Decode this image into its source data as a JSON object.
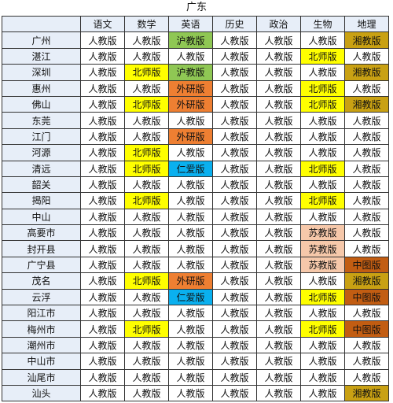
{
  "title": "广东",
  "headers": [
    "",
    "语文",
    "数学",
    "英语",
    "历史",
    "政治",
    "生物",
    "地理"
  ],
  "colors": {
    "人教版": "#ffffff",
    "北师版": "#ffff00",
    "沪教版": "#8fc754",
    "外研版": "#ee7f32",
    "仁爱版": "#0ab0ef",
    "苏教版": "#f6c8aa",
    "湘教版": "#c9a113",
    "中图版": "#c25d12"
  },
  "rows": [
    {
      "city": "广州",
      "cells": [
        "人教版",
        "人教版",
        "沪教版",
        "人教版",
        "人教版",
        "人教版",
        "湘教版"
      ]
    },
    {
      "city": "湛江",
      "cells": [
        "人教版",
        "人教版",
        "人教版",
        "人教版",
        "人教版",
        "北师版",
        "人教版"
      ]
    },
    {
      "city": "深圳",
      "cells": [
        "人教版",
        "北师版",
        "沪教版",
        "人教版",
        "人教版",
        "人教版",
        "湘教版"
      ]
    },
    {
      "city": "惠州",
      "cells": [
        "人教版",
        "人教版",
        "外研版",
        "人教版",
        "人教版",
        "北师版",
        "人教版"
      ]
    },
    {
      "city": "佛山",
      "cells": [
        "人教版",
        "北师版",
        "外研版",
        "人教版",
        "人教版",
        "北师版",
        "湘教版"
      ]
    },
    {
      "city": "东莞",
      "cells": [
        "人教版",
        "人教版",
        "人教版",
        "人教版",
        "人教版",
        "人教版",
        "人教版"
      ]
    },
    {
      "city": "江门",
      "cells": [
        "人教版",
        "人教版",
        "外研版",
        "人教版",
        "人教版",
        "人教版",
        "人教版"
      ]
    },
    {
      "city": "河源",
      "cells": [
        "人教版",
        "北师版",
        "人教版",
        "人教版",
        "人教版",
        "人教版",
        "人教版"
      ]
    },
    {
      "city": "清远",
      "cells": [
        "人教版",
        "北师版",
        "仁爱版",
        "人教版",
        "人教版",
        "北师版",
        "人教版"
      ]
    },
    {
      "city": "韶关",
      "cells": [
        "人教版",
        "人教版",
        "人教版",
        "人教版",
        "人教版",
        "人教版",
        "人教版"
      ]
    },
    {
      "city": "揭阳",
      "cells": [
        "人教版",
        "北师版",
        "人教版",
        "人教版",
        "人教版",
        "北师版",
        "人教版"
      ]
    },
    {
      "city": "中山",
      "cells": [
        "人教版",
        "人教版",
        "人教版",
        "人教版",
        "人教版",
        "人教版",
        "人教版"
      ]
    },
    {
      "city": "高要市",
      "cells": [
        "人教版",
        "人教版",
        "人教版",
        "人教版",
        "人教版",
        "苏教版",
        "人教版"
      ]
    },
    {
      "city": "封开县",
      "cells": [
        "人教版",
        "人教版",
        "人教版",
        "人教版",
        "人教版",
        "苏教版",
        "人教版"
      ]
    },
    {
      "city": "广宁县",
      "cells": [
        "人教版",
        "人教版",
        "人教版",
        "人教版",
        "人教版",
        "苏教版",
        "中图版"
      ]
    },
    {
      "city": "茂名",
      "cells": [
        "人教版",
        "北师版",
        "外研版",
        "人教版",
        "人教版",
        "人教版",
        "湘教版"
      ]
    },
    {
      "city": "云浮",
      "cells": [
        "人教版",
        "人教版",
        "仁爱版",
        "人教版",
        "人教版",
        "北师版",
        "中图版"
      ]
    },
    {
      "city": "阳江市",
      "cells": [
        "人教版",
        "人教版",
        "人教版",
        "人教版",
        "人教版",
        "人教版",
        "人教版"
      ]
    },
    {
      "city": "梅州市",
      "cells": [
        "人教版",
        "北师版",
        "人教版",
        "人教版",
        "人教版",
        "北师版",
        "中图版"
      ]
    },
    {
      "city": "潮州市",
      "cells": [
        "人教版",
        "人教版",
        "人教版",
        "人教版",
        "人教版",
        "人教版",
        "人教版"
      ]
    },
    {
      "city": "中山市",
      "cells": [
        "人教版",
        "人教版",
        "人教版",
        "人教版",
        "人教版",
        "人教版",
        "人教版"
      ]
    },
    {
      "city": "汕尾市",
      "cells": [
        "人教版",
        "人教版",
        "人教版",
        "人教版",
        "人教版",
        "人教版",
        "人教版"
      ]
    },
    {
      "city": "汕头",
      "cells": [
        "人教版",
        "人教版",
        "人教版",
        "人教版",
        "人教版",
        "人教版",
        "湘教版"
      ]
    }
  ]
}
